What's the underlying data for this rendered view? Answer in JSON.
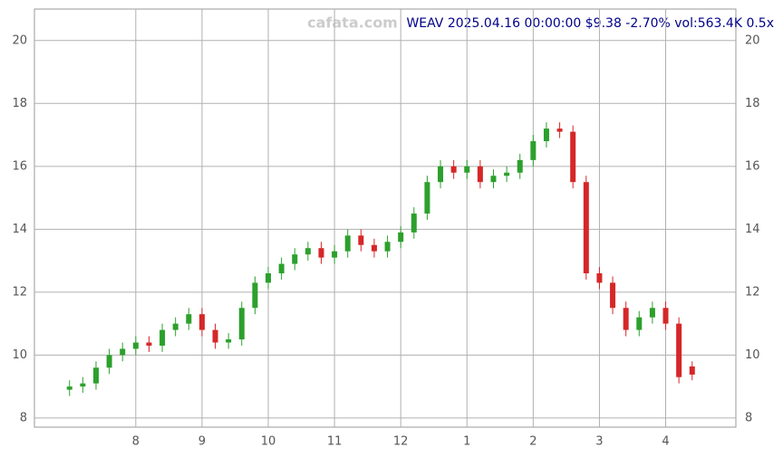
{
  "chart_data": {
    "type": "candlestick",
    "title": "WEAV 2025.04.16 00:00:00 $9.38 -2.70% vol:563.4K 0.5x",
    "watermark": "cafata.com",
    "x": [
      7.0,
      7.2,
      7.4,
      7.6,
      7.8,
      8.0,
      8.2,
      8.4,
      8.6,
      8.8,
      9.0,
      9.2,
      9.4,
      9.6,
      9.8,
      10.0,
      10.2,
      10.4,
      10.6,
      10.8,
      11.0,
      11.2,
      11.4,
      11.6,
      11.8,
      12.0,
      12.2,
      12.4,
      12.6,
      12.8,
      13.0,
      13.2,
      13.4,
      13.6,
      13.8,
      14.0,
      14.2,
      14.4,
      14.6,
      14.8,
      15.0,
      15.2,
      15.4,
      15.6,
      15.8,
      16.0,
      16.2,
      16.4
    ],
    "open": [
      8.9,
      9.0,
      9.1,
      9.6,
      10.0,
      10.2,
      10.4,
      10.3,
      10.8,
      11.0,
      11.3,
      10.8,
      10.4,
      10.5,
      11.5,
      12.3,
      12.6,
      12.9,
      13.2,
      13.4,
      13.1,
      13.3,
      13.8,
      13.5,
      13.3,
      13.6,
      13.9,
      14.5,
      15.5,
      16.0,
      15.8,
      16.0,
      15.5,
      15.7,
      15.8,
      16.2,
      16.8,
      17.2,
      17.1,
      15.5,
      12.6,
      12.3,
      11.5,
      10.8,
      11.2,
      11.5,
      11.0,
      9.64
    ],
    "high": [
      9.2,
      9.3,
      9.8,
      10.2,
      10.4,
      10.6,
      10.6,
      11.0,
      11.2,
      11.5,
      11.5,
      11.0,
      10.7,
      11.7,
      12.5,
      12.8,
      13.1,
      13.4,
      13.6,
      13.6,
      13.5,
      14.0,
      14.0,
      13.7,
      13.8,
      14.1,
      14.7,
      15.7,
      16.2,
      16.2,
      16.2,
      16.2,
      15.9,
      16.0,
      16.4,
      17.0,
      17.4,
      17.4,
      17.3,
      15.7,
      12.8,
      12.5,
      11.7,
      11.4,
      11.7,
      11.7,
      11.2,
      9.8
    ],
    "low": [
      8.7,
      8.8,
      8.9,
      9.4,
      9.8,
      10.0,
      10.1,
      10.1,
      10.6,
      10.8,
      10.6,
      10.2,
      10.2,
      10.3,
      11.3,
      12.1,
      12.4,
      12.7,
      13.0,
      12.9,
      12.9,
      13.1,
      13.3,
      13.1,
      13.1,
      13.4,
      13.7,
      14.3,
      15.3,
      15.6,
      15.6,
      15.3,
      15.3,
      15.5,
      15.6,
      16.0,
      16.6,
      16.9,
      15.3,
      12.4,
      12.1,
      11.3,
      10.6,
      10.6,
      11.0,
      10.8,
      9.1,
      9.2
    ],
    "close": [
      9.0,
      9.1,
      9.6,
      10.0,
      10.2,
      10.4,
      10.3,
      10.8,
      11.0,
      11.3,
      10.8,
      10.4,
      10.5,
      11.5,
      12.3,
      12.6,
      12.9,
      13.2,
      13.4,
      13.1,
      13.3,
      13.8,
      13.5,
      13.3,
      13.6,
      13.9,
      14.5,
      15.5,
      16.0,
      15.8,
      16.0,
      15.5,
      15.7,
      15.8,
      16.2,
      16.8,
      17.2,
      17.1,
      15.5,
      12.6,
      12.3,
      11.5,
      10.8,
      11.2,
      11.5,
      11.0,
      9.3,
      9.38
    ],
    "up_color": "#2ca02c",
    "down_color": "#d62728",
    "xlim": [
      6.47,
      17.06
    ],
    "xticks": [
      8,
      9,
      10,
      11,
      12,
      {
        "value": 13,
        "label": "1"
      },
      {
        "value": 14,
        "label": "2"
      },
      {
        "value": 15,
        "label": "3"
      },
      {
        "value": 16,
        "label": "4"
      }
    ],
    "ylim": [
      7.71,
      21.0
    ],
    "yticks": [
      8,
      10,
      12,
      14,
      16,
      18,
      20
    ],
    "grid": true
  }
}
